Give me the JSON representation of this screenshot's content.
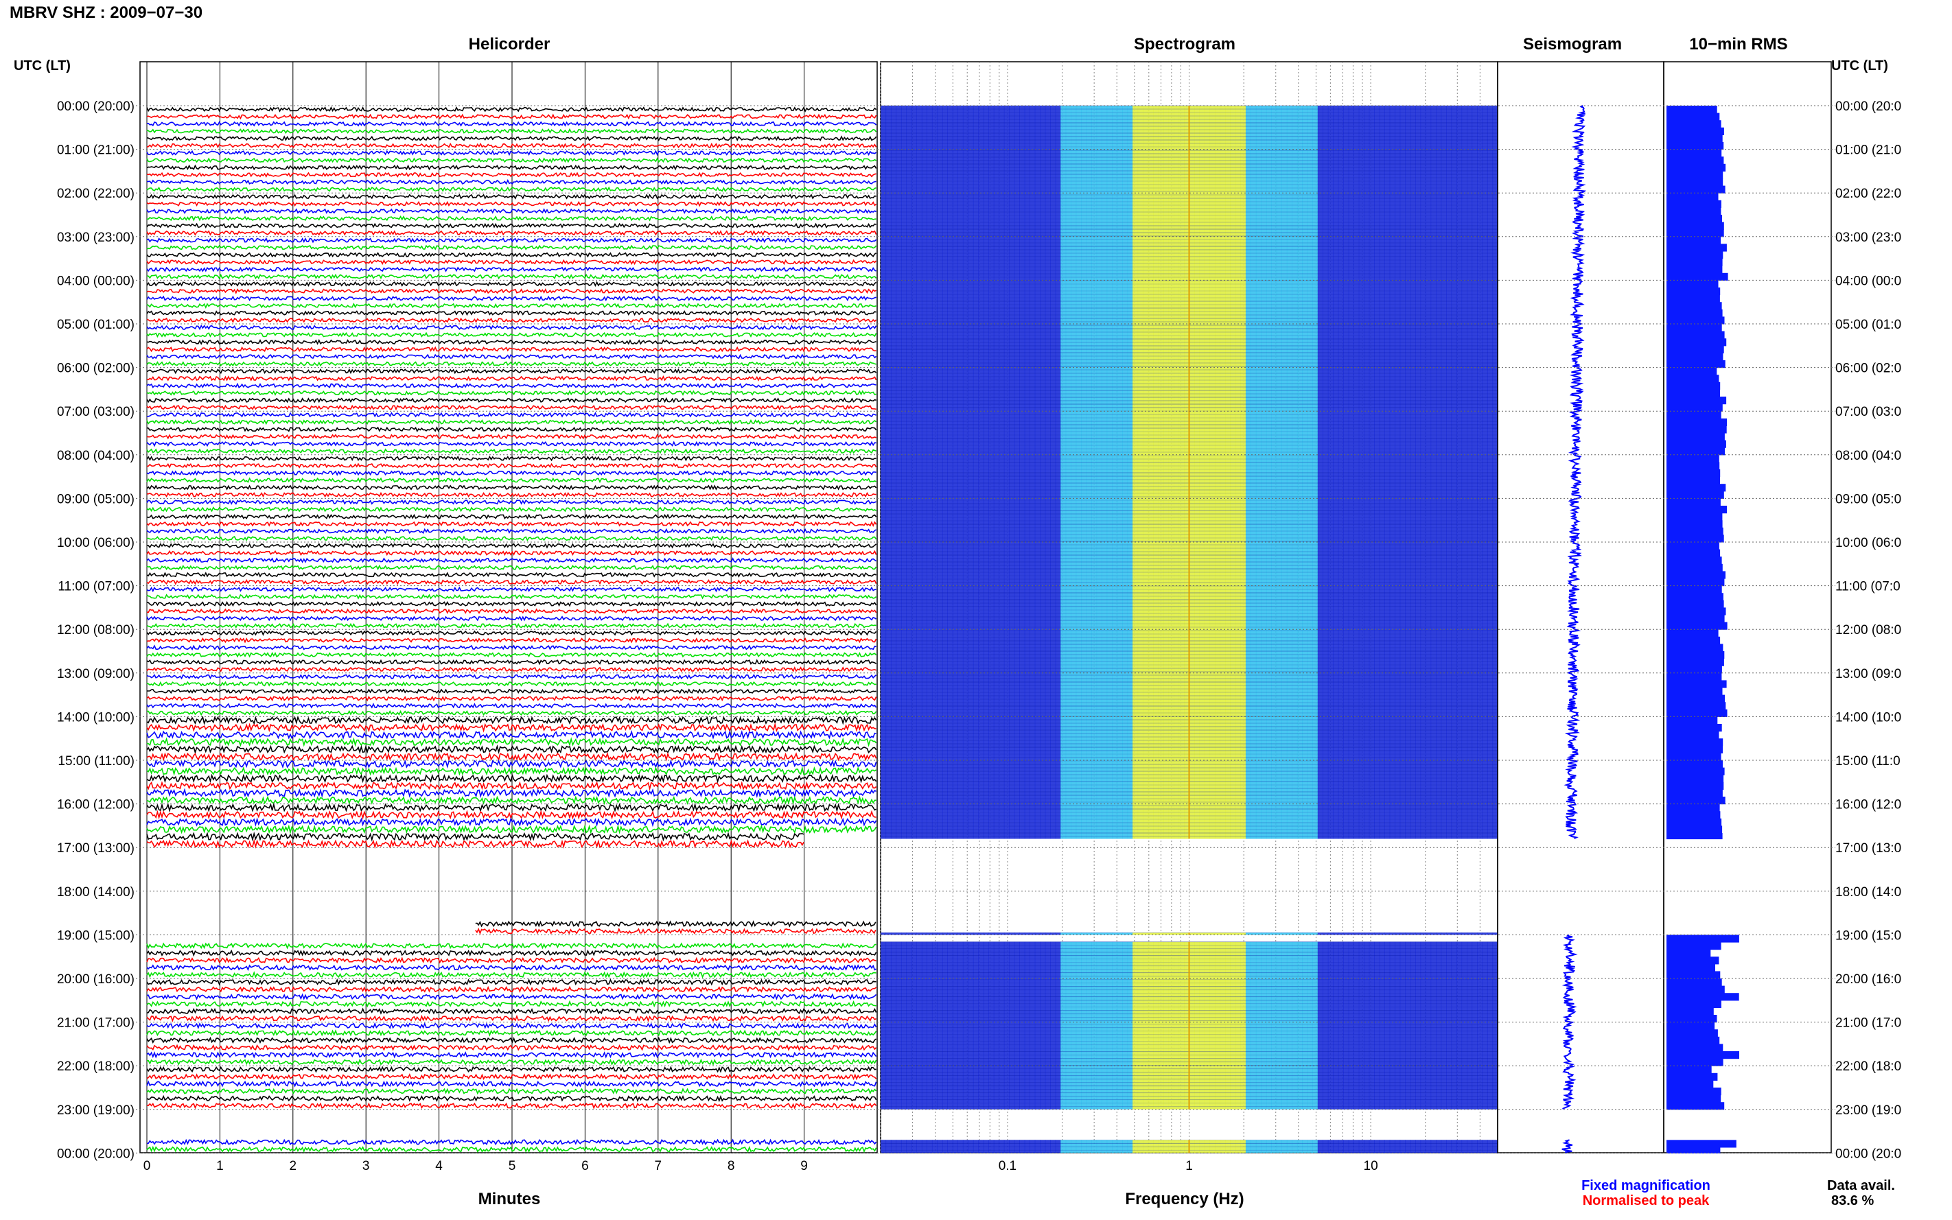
{
  "header": {
    "title": "MBRV SHZ : 2009−07−30"
  },
  "panels": {
    "helicorder": "Helicorder",
    "spectrogram": "Spectrogram",
    "seismogram": "Seismogram",
    "rms": "10−min RMS"
  },
  "axis_titles": {
    "time_left": "UTC (LT)",
    "time_right": "UTC (LT)"
  },
  "legend": {
    "fixed": "Fixed magnification",
    "normalised": "Normalised to peak",
    "fixed_color": "#0000ff",
    "normalised_color": "#ff0000"
  },
  "data_avail": {
    "label": "Data avail.",
    "value": "83.6 %"
  },
  "colors": {
    "trace_cycle": [
      "#000000",
      "#ff0000",
      "#0000ff",
      "#00e000"
    ],
    "spec_low": "#1a2bd8",
    "spec_mid": "#35c2f0",
    "spec_high": "#e0f040",
    "rms_bar": "#0a1aff"
  },
  "chart_data": [
    {
      "type": "line",
      "panel": "Helicorder",
      "xlabel": "Minutes",
      "x_ticks": [
        "0",
        "1",
        "2",
        "3",
        "4",
        "5",
        "6",
        "7",
        "8",
        "9"
      ],
      "xlim": [
        0,
        10
      ],
      "ylabel": "UTC (LT)",
      "y_ticks": [
        "00:00 (20:00)",
        "01:00 (21:00)",
        "02:00 (22:00)",
        "03:00 (23:00)",
        "04:00 (00:00)",
        "05:00 (01:00)",
        "06:00 (02:00)",
        "07:00 (03:00)",
        "08:00 (04:00)",
        "09:00 (05:00)",
        "10:00 (06:00)",
        "11:00 (07:00)",
        "12:00 (08:00)",
        "13:00 (09:00)",
        "14:00 (10:00)",
        "15:00 (11:00)",
        "16:00 (12:00)",
        "17:00 (13:00)",
        "18:00 (14:00)",
        "19:00 (15:00)",
        "20:00 (16:00)",
        "21:00 (17:00)",
        "22:00 (18:00)",
        "23:00 (19:00)",
        "00:00 (20:00)"
      ],
      "y_ticks_right": [
        "00:00 (20:0",
        "01:00 (21:0",
        "02:00 (22:0",
        "03:00 (23:0",
        "04:00 (00:0",
        "05:00 (01:0",
        "06:00 (02:0",
        "07:00 (03:0",
        "08:00 (04:0",
        "09:00 (05:0",
        "10:00 (06:0",
        "11:00 (07:0",
        "12:00 (08:0",
        "13:00 (09:0",
        "14:00 (10:0",
        "15:00 (11:0",
        "16:00 (12:0",
        "17:00 (13:0",
        "18:00 (14:0",
        "19:00 (15:0",
        "20:00 (16:0",
        "21:00 (17:0",
        "22:00 (18:0",
        "23:00 (19:0",
        "00:00 (20:0"
      ],
      "ylim_hours": [
        0,
        24
      ],
      "rows_per_hour": 6,
      "trace_minutes": 10,
      "data_segments_hours": [
        [
          0,
          16.8
        ],
        [
          18.95,
          19.0
        ],
        [
          19.16,
          23.0
        ],
        [
          23.7,
          24.0
        ]
      ],
      "partial_rows": [
        {
          "hour": 16.833,
          "start_min": 0,
          "end_min": 9
        },
        {
          "hour": 18.833,
          "start_min": 4.5,
          "end_min": 10
        }
      ]
    },
    {
      "type": "heatmap",
      "panel": "Spectrogram",
      "xlabel": "Frequency (Hz)",
      "x_scale": "log",
      "x_ticks": [
        "0.1",
        "1",
        "10"
      ],
      "xlim": [
        0.02,
        50
      ],
      "ylim_hours": [
        0,
        24
      ],
      "dominant_band_hz": [
        0.2,
        2.0
      ],
      "peak_hz": 1.0,
      "data_segments_hours": [
        [
          0,
          16.8
        ],
        [
          18.95,
          19.0
        ],
        [
          19.16,
          23.0
        ],
        [
          23.7,
          24.0
        ]
      ]
    },
    {
      "type": "line",
      "panel": "Seismogram",
      "ylim_hours": [
        0,
        24
      ],
      "data_segments_hours": [
        [
          0,
          16.8
        ],
        [
          19.0,
          23.0
        ],
        [
          23.7,
          24.0
        ]
      ]
    },
    {
      "type": "bar",
      "panel": "10-min RMS",
      "orientation": "horizontal",
      "ylim_hours": [
        0,
        24
      ],
      "interval_minutes": 10,
      "relative_values_day": [
        0.85,
        0.88,
        0.9,
        0.92,
        0.95,
        0.94,
        0.93,
        0.97,
        0.96,
        0.95,
        0.96,
        0.98
      ],
      "relative_values_evening": [
        0.85,
        0.8,
        0.88,
        0.9,
        0.95,
        1.2,
        0.9,
        0.75
      ],
      "data_segments_hours": [
        [
          0,
          16.8
        ],
        [
          19.0,
          23.0
        ],
        [
          23.7,
          24.0
        ]
      ]
    }
  ]
}
